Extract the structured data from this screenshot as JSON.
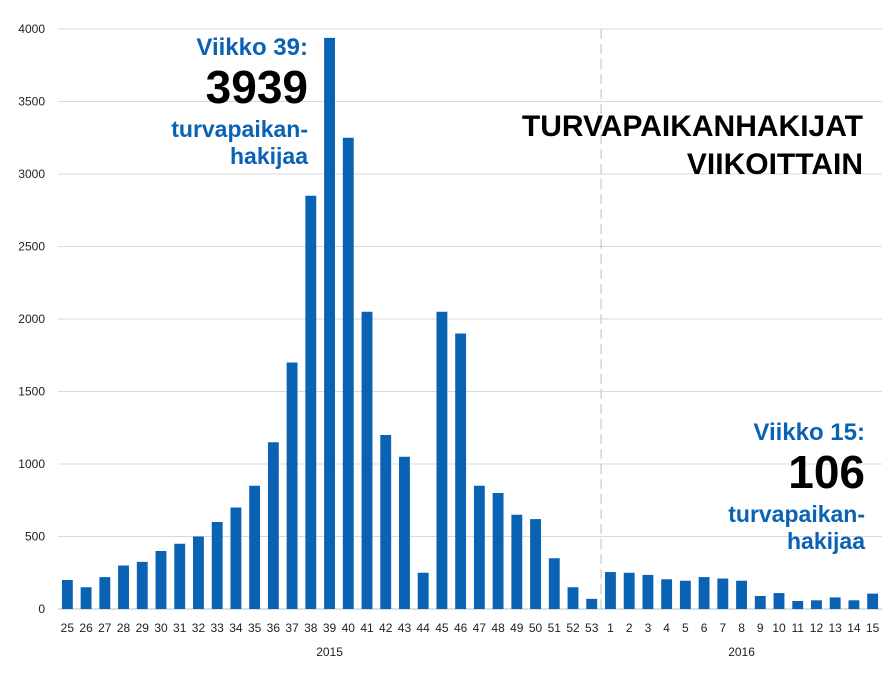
{
  "chart_data": {
    "type": "bar",
    "title_lines": [
      "TURVAPAIKANHAKIJAT",
      "VIIKOITTAIN"
    ],
    "ylim": [
      0,
      4000
    ],
    "yticks": [
      0,
      500,
      1000,
      1500,
      2000,
      2500,
      3000,
      3500,
      4000
    ],
    "grid": true,
    "bar_color": "#0a62b4",
    "categories": [
      "25",
      "26",
      "27",
      "28",
      "29",
      "30",
      "31",
      "32",
      "33",
      "34",
      "35",
      "36",
      "37",
      "38",
      "39",
      "40",
      "41",
      "42",
      "43",
      "44",
      "45",
      "46",
      "47",
      "48",
      "49",
      "50",
      "51",
      "52",
      "53",
      "1",
      "2",
      "3",
      "4",
      "5",
      "6",
      "7",
      "8",
      "9",
      "10",
      "11",
      "12",
      "13",
      "14",
      "15"
    ],
    "values": [
      200,
      150,
      220,
      300,
      325,
      400,
      450,
      500,
      600,
      700,
      850,
      1150,
      1700,
      2850,
      3939,
      3250,
      2050,
      1200,
      1050,
      250,
      2050,
      1900,
      850,
      800,
      650,
      620,
      350,
      150,
      70,
      255,
      250,
      235,
      205,
      195,
      220,
      210,
      195,
      90,
      110,
      55,
      60,
      80,
      60,
      106
    ],
    "year_groups": [
      {
        "label": "2015",
        "start": 0,
        "end": 28
      },
      {
        "label": "2016",
        "start": 29,
        "end": 43
      }
    ],
    "annotations": [
      {
        "week": "Viikko 39:",
        "value": "3939",
        "line1": "turvapaikan-",
        "line2": "hakijaa"
      },
      {
        "week": "Viikko 15:",
        "value": "106",
        "line1": "turvapaikan-",
        "line2": "hakijaa"
      }
    ]
  }
}
